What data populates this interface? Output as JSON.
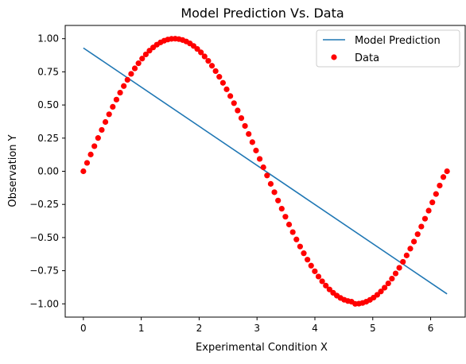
{
  "chart_data": {
    "type": "scatter",
    "title": "Model Prediction Vs. Data",
    "xlabel": "Experimental Condition X",
    "ylabel": "Observation Y",
    "xlim": [
      -0.314,
      6.597
    ],
    "ylim": [
      -1.1,
      1.1
    ],
    "xticks": [
      0,
      1,
      2,
      3,
      4,
      5,
      6
    ],
    "yticks": [
      1.0,
      0.75,
      0.5,
      0.25,
      0.0,
      -0.25,
      -0.5,
      -0.75,
      -1.0
    ],
    "xtick_labels": [
      "0",
      "1",
      "2",
      "3",
      "4",
      "5",
      "6"
    ],
    "ytick_labels": [
      "1.00",
      "0.75",
      "0.50",
      "0.25",
      "0.00",
      "−0.25",
      "−0.50",
      "−0.75",
      "−1.00"
    ],
    "grid": false,
    "legend_position": "top-right",
    "series": [
      {
        "name": "Model Prediction",
        "type": "line",
        "color": "#1f77b4",
        "x": [
          0,
          6.283
        ],
        "y": [
          0.93,
          -0.925
        ]
      },
      {
        "name": "Data",
        "type": "scatter",
        "color": "#ff0000",
        "x": [
          0,
          0.0635,
          0.1269,
          0.1904,
          0.2539,
          0.3173,
          0.3808,
          0.4443,
          0.5077,
          0.5712,
          0.6347,
          0.6981,
          0.7616,
          0.8251,
          0.8885,
          0.952,
          1.0155,
          1.0789,
          1.1424,
          1.2059,
          1.2693,
          1.3328,
          1.3963,
          1.4597,
          1.5232,
          1.5867,
          1.6501,
          1.7136,
          1.7771,
          1.8405,
          1.904,
          1.9675,
          2.0309,
          2.0944,
          2.1579,
          2.2213,
          2.2848,
          2.3483,
          2.4117,
          2.4752,
          2.5387,
          2.6021,
          2.6656,
          2.7291,
          2.7925,
          2.856,
          2.9195,
          2.9829,
          3.0464,
          3.1099,
          3.1733,
          3.2368,
          3.3003,
          3.3637,
          3.4272,
          3.4907,
          3.5541,
          3.6176,
          3.6811,
          3.7445,
          3.808,
          3.8715,
          3.9349,
          3.9984,
          4.0619,
          4.1253,
          4.1888,
          4.2523,
          4.3157,
          4.3792,
          4.4427,
          4.5061,
          4.5696,
          4.6331,
          4.6965,
          4.76,
          4.8235,
          4.8869,
          4.9504,
          5.0139,
          5.0773,
          5.1408,
          5.2043,
          5.2677,
          5.3312,
          5.3947,
          5.4581,
          5.5216,
          5.5851,
          5.6485,
          5.712,
          5.7755,
          5.8389,
          5.9024,
          5.9659,
          6.0293,
          6.0928,
          6.1563,
          6.2197,
          6.2832
        ],
        "y": [
          0.0,
          0.0634,
          0.1266,
          0.1893,
          0.2511,
          0.312,
          0.3717,
          0.4298,
          0.4862,
          0.5406,
          0.5929,
          0.6428,
          0.69,
          0.7346,
          0.7761,
          0.8146,
          0.8497,
          0.8815,
          0.9096,
          0.9341,
          0.9549,
          0.9718,
          0.9848,
          0.9938,
          0.9989,
          0.9999,
          0.997,
          0.99,
          0.979,
          0.9642,
          0.9454,
          0.9229,
          0.8968,
          0.8661,
          0.8326,
          0.7958,
          0.7557,
          0.7127,
          0.6668,
          0.6182,
          0.5672,
          0.5138,
          0.4584,
          0.401,
          0.3419,
          0.2813,
          0.2195,
          0.1566,
          0.0932,
          0.0299,
          -0.0317,
          -0.0951,
          -0.158,
          -0.2206,
          -0.2823,
          -0.3428,
          -0.4016,
          -0.4589,
          -0.5142,
          -0.5675,
          -0.6184,
          -0.6665,
          -0.712,
          -0.7544,
          -0.7938,
          -0.8298,
          -0.8624,
          -0.8913,
          -0.9166,
          -0.938,
          -0.9556,
          -0.9691,
          -0.9785,
          -0.9839,
          -0.9999,
          -0.9985,
          -0.9931,
          -0.9837,
          -0.9703,
          -0.9529,
          -0.9317,
          -0.9067,
          -0.878,
          -0.8457,
          -0.8099,
          -0.7706,
          -0.7282,
          -0.6829,
          -0.6346,
          -0.5837,
          -0.5303,
          -0.4747,
          -0.4171,
          -0.3578,
          -0.2969,
          -0.2347,
          -0.1716,
          -0.1078,
          -0.0436,
          0.0
        ]
      }
    ]
  }
}
